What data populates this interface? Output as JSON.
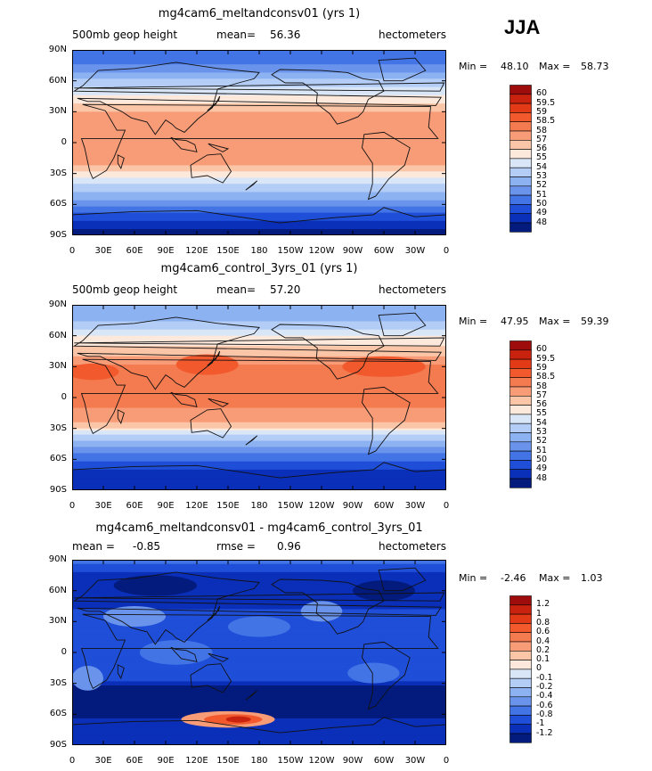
{
  "season": "JJA",
  "lat_ticks": [
    "90N",
    "60N",
    "30N",
    "0",
    "30S",
    "60S",
    "90S"
  ],
  "lon_ticks": [
    "0",
    "30E",
    "60E",
    "90E",
    "120E",
    "150E",
    "180",
    "150W",
    "120W",
    "90W",
    "60W",
    "30W",
    "0"
  ],
  "panels": [
    {
      "title": "mg4cam6_meltandconsv01 (yrs 1)",
      "left_label": "500mb geop height",
      "stat_label": "mean=",
      "stat_value": "56.36",
      "stat2_label": "",
      "stat2_value": "",
      "units": "hectometers",
      "min_label": "Min =",
      "min_value": "48.10",
      "max_label": "Max =",
      "max_value": "58.73",
      "levels": [
        "60",
        "59.5",
        "59",
        "58.5",
        "58",
        "57",
        "56",
        "55",
        "54",
        "53",
        "52",
        "51",
        "50",
        "49",
        "48"
      ],
      "colors": [
        "#9e0c0c",
        "#c9220e",
        "#e23a16",
        "#f25a2e",
        "#f47a50",
        "#f89c78",
        "#fbc6a8",
        "#fde9dc",
        "#d9e6f8",
        "#b3cdf6",
        "#8db2f2",
        "#6a94ec",
        "#4274e6",
        "#1f4ed8",
        "#0a2fb8",
        "#021b7d"
      ],
      "band_stops": [
        [
          -90,
          15
        ],
        [
          -80,
          14
        ],
        [
          -72,
          13
        ],
        [
          -66,
          12
        ],
        [
          -60,
          11
        ],
        [
          -52,
          10
        ],
        [
          -44,
          9
        ],
        [
          -38,
          8
        ],
        [
          -32,
          7
        ],
        [
          -26,
          6
        ],
        [
          -18,
          5
        ],
        [
          16,
          5
        ],
        [
          26,
          5
        ],
        [
          34,
          6
        ],
        [
          42,
          7
        ],
        [
          50,
          8
        ],
        [
          58,
          9
        ],
        [
          65,
          10
        ],
        [
          72,
          11
        ],
        [
          80,
          12
        ],
        [
          90,
          12
        ]
      ],
      "blobs": []
    },
    {
      "title": "mg4cam6_control_3yrs_01 (yrs 1)",
      "left_label": "500mb geop height",
      "stat_label": "mean=",
      "stat_value": "57.20",
      "stat2_label": "",
      "stat2_value": "",
      "units": "hectometers",
      "min_label": "Min =",
      "min_value": "47.95",
      "max_label": "Max =",
      "max_value": "59.39",
      "levels": [
        "60",
        "59.5",
        "59",
        "58.5",
        "58",
        "57",
        "56",
        "55",
        "54",
        "53",
        "52",
        "51",
        "50",
        "49",
        "48"
      ],
      "colors": [
        "#9e0c0c",
        "#c9220e",
        "#e23a16",
        "#f25a2e",
        "#f47a50",
        "#f89c78",
        "#fbc6a8",
        "#fde9dc",
        "#d9e6f8",
        "#b3cdf6",
        "#8db2f2",
        "#6a94ec",
        "#4274e6",
        "#1f4ed8",
        "#0a2fb8",
        "#021b7d"
      ],
      "band_stops": [
        [
          -90,
          14
        ],
        [
          -75,
          14
        ],
        [
          -66,
          13
        ],
        [
          -58,
          12
        ],
        [
          -52,
          11
        ],
        [
          -46,
          10
        ],
        [
          -40,
          9
        ],
        [
          -34,
          8
        ],
        [
          -28,
          6
        ],
        [
          -22,
          5
        ],
        [
          0,
          4
        ],
        [
          18,
          4
        ],
        [
          28,
          4
        ],
        [
          36,
          5
        ],
        [
          46,
          6
        ],
        [
          56,
          7
        ],
        [
          64,
          8
        ],
        [
          70,
          9
        ],
        [
          78,
          10
        ],
        [
          90,
          10
        ]
      ],
      "blobs": [
        {
          "lon": 130,
          "lat": 32,
          "rx": 30,
          "ry": 10,
          "level": 3
        },
        {
          "lon": 300,
          "lat": 30,
          "rx": 40,
          "ry": 10,
          "level": 3
        },
        {
          "lon": 20,
          "lat": 25,
          "rx": 25,
          "ry": 8,
          "level": 3
        }
      ]
    },
    {
      "title": "mg4cam6_meltandconsv01 - mg4cam6_control_3yrs_01",
      "left_label": "mean =",
      "stat_label": "",
      "stat_value": "-0.85",
      "stat2_label": "rmse =",
      "stat2_value": "0.96",
      "units": "hectometers",
      "min_label": "Min =",
      "min_value": "-2.46",
      "max_label": "Max =",
      "max_value": "1.03",
      "levels": [
        "1.2",
        "1",
        "0.8",
        "0.6",
        "0.4",
        "0.2",
        "0.1",
        "0",
        "-0.1",
        "-0.2",
        "-0.4",
        "-0.6",
        "-0.8",
        "-1",
        "-1.2"
      ],
      "colors": [
        "#9e0c0c",
        "#c9220e",
        "#e23a16",
        "#f25a2e",
        "#f47a50",
        "#f89c78",
        "#fbc6a8",
        "#fde9dc",
        "#d9e6f8",
        "#b3cdf6",
        "#8db2f2",
        "#6a94ec",
        "#4274e6",
        "#1f4ed8",
        "#0a2fb8",
        "#021b7d"
      ],
      "band_stops": [
        [
          -90,
          14
        ],
        [
          -80,
          14
        ],
        [
          -72,
          14
        ],
        [
          -55,
          15
        ],
        [
          -35,
          15
        ],
        [
          -25,
          13
        ],
        [
          0,
          13
        ],
        [
          30,
          13
        ],
        [
          55,
          14
        ],
        [
          75,
          14
        ],
        [
          90,
          12
        ]
      ],
      "blobs": [
        {
          "lon": 150,
          "lat": -65,
          "rx": 45,
          "ry": 8,
          "level": 5
        },
        {
          "lon": 155,
          "lat": -65,
          "rx": 28,
          "ry": 5,
          "level": 3
        },
        {
          "lon": 160,
          "lat": -65,
          "rx": 12,
          "ry": 3,
          "level": 1
        },
        {
          "lon": 60,
          "lat": 35,
          "rx": 30,
          "ry": 10,
          "level": 11
        },
        {
          "lon": 180,
          "lat": 25,
          "rx": 30,
          "ry": 10,
          "level": 12
        },
        {
          "lon": 240,
          "lat": 40,
          "rx": 20,
          "ry": 10,
          "level": 11
        },
        {
          "lon": 15,
          "lat": -25,
          "rx": 15,
          "ry": 12,
          "level": 11
        },
        {
          "lon": 290,
          "lat": -20,
          "rx": 25,
          "ry": 10,
          "level": 12
        },
        {
          "lon": 100,
          "lat": 0,
          "rx": 35,
          "ry": 12,
          "level": 12
        },
        {
          "lon": 80,
          "lat": 65,
          "rx": 40,
          "ry": 10,
          "level": 15
        },
        {
          "lon": 300,
          "lat": 60,
          "rx": 30,
          "ry": 10,
          "level": 15
        }
      ]
    }
  ]
}
